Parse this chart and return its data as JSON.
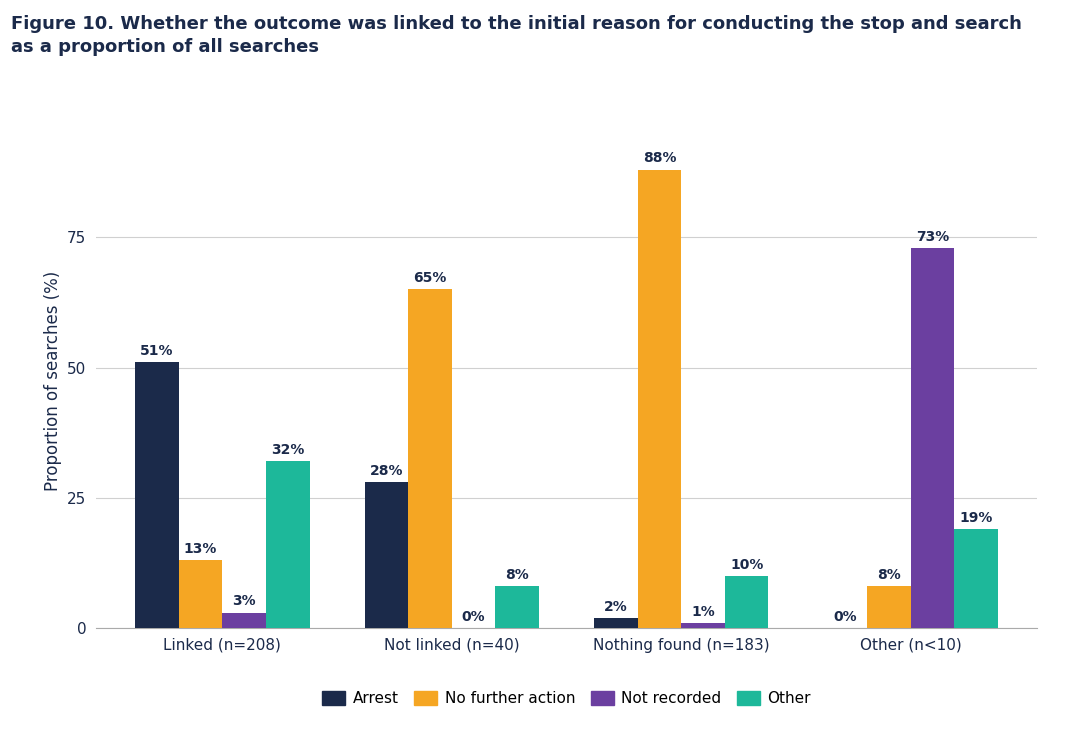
{
  "categories": [
    "Linked (n=208)",
    "Not linked (n=40)",
    "Nothing found (n=183)",
    "Other (n<10)"
  ],
  "series": {
    "Arrest": [
      51,
      28,
      2,
      0
    ],
    "No further action": [
      13,
      65,
      88,
      8
    ],
    "Not recorded": [
      3,
      0,
      1,
      73
    ],
    "Other": [
      32,
      8,
      10,
      19
    ]
  },
  "colors": {
    "Arrest": "#1b2a4a",
    "No further action": "#f5a623",
    "Not recorded": "#6b3fa0",
    "Other": "#1db89a"
  },
  "title_line1": "Figure 10. Whether the outcome was linked to the initial reason for conducting the stop and search",
  "title_line2": "as a proportion of all searches",
  "ylabel": "Proportion of searches (%)",
  "ylim": [
    0,
    95
  ],
  "yticks": [
    0,
    25,
    50,
    75
  ],
  "background_color": "#ffffff",
  "title_color": "#1b2a4a",
  "label_color": "#1b2a4a",
  "axis_color": "#1b2a4a",
  "grid_color": "#d0d0d0",
  "bar_width": 0.19,
  "title_fontsize": 13,
  "label_fontsize": 10,
  "tick_fontsize": 11,
  "ylabel_fontsize": 12,
  "legend_fontsize": 11
}
